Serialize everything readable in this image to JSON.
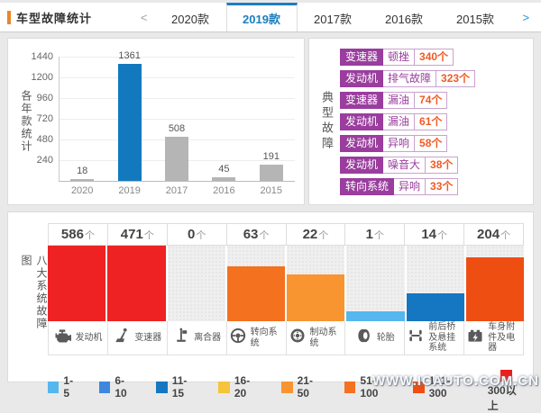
{
  "page": {
    "watermark": "WWW.ICAUTO.COM.CN"
  },
  "header": {
    "title": "车型故障统计",
    "prev_arrow": "<",
    "next_arrow": ">",
    "tabs": [
      {
        "label": "2020款",
        "active": false
      },
      {
        "label": "2019款",
        "active": true
      },
      {
        "label": "2017款",
        "active": false
      },
      {
        "label": "2016款",
        "active": false
      },
      {
        "label": "2015款",
        "active": false
      }
    ]
  },
  "colors": {
    "accent_orange": "#e8872b",
    "active_tab_blue": "#1c7ec0",
    "highlight_bar_blue": "#1279bf",
    "gray_bar": "#b5b5b5",
    "purple": "#9a3d9e",
    "purple_border": "#c9a2ce",
    "count_orange": "#f15a24"
  },
  "chart_data": [
    {
      "type": "bar",
      "title": "各年款统计",
      "categories": [
        "2020",
        "2019",
        "2017",
        "2016",
        "2015"
      ],
      "values": [
        18,
        1361,
        508,
        45,
        191
      ],
      "highlight_index": 1,
      "yticks": [
        1440,
        1200,
        960,
        720,
        480,
        240
      ],
      "ylim": [
        0,
        1440
      ],
      "grid": true,
      "bar_color_default": "#b5b5b5",
      "bar_color_highlight": "#1279bf"
    },
    {
      "type": "bar",
      "title": "八大系统故障图",
      "categories": [
        "发动机",
        "变速器",
        "离合器",
        "转向系统",
        "制动系统",
        "轮胎",
        "前后桥及悬挂系统",
        "车身附件及电器"
      ],
      "icons": [
        "engine-icon",
        "gearshift-icon",
        "clutch-icon",
        "steering-wheel-icon",
        "brake-disc-icon",
        "tire-icon",
        "axle-suspension-icon",
        "battery-icon"
      ],
      "values": [
        586,
        471,
        0,
        63,
        22,
        1,
        14,
        204
      ],
      "unit": "个",
      "bar_colors": [
        "#ee2222",
        "#ee2222",
        "",
        "#f4711f",
        "#f89531",
        "#55b7ee",
        "#1577c2",
        "#ef4e12"
      ],
      "bar_height_pct": [
        100,
        100,
        0,
        73,
        62,
        13,
        37,
        85
      ],
      "legend_position": "bottom",
      "legend": [
        {
          "label": "1-5",
          "color": "#55b7ee"
        },
        {
          "label": "6-10",
          "color": "#3e87dd"
        },
        {
          "label": "11-15",
          "color": "#1577c2"
        },
        {
          "label": "16-20",
          "color": "#f6c33a"
        },
        {
          "label": "21-50",
          "color": "#f89531"
        },
        {
          "label": "51-100",
          "color": "#f4711f"
        },
        {
          "label": "101-300",
          "color": "#ef4e12"
        },
        {
          "label": "300以上",
          "color": "#ee1c1c"
        }
      ]
    }
  ],
  "typical_faults": {
    "title": "典型故障",
    "items": [
      {
        "system": "变速器",
        "fault": "顿挫",
        "count": "340个"
      },
      {
        "system": "发动机",
        "fault": "排气故障",
        "count": "323个"
      },
      {
        "system": "变速器",
        "fault": "漏油",
        "count": "74个"
      },
      {
        "system": "发动机",
        "fault": "漏油",
        "count": "61个"
      },
      {
        "system": "发动机",
        "fault": "异响",
        "count": "58个"
      },
      {
        "system": "发动机",
        "fault": "噪音大",
        "count": "38个"
      },
      {
        "system": "转向系统",
        "fault": "异响",
        "count": "33个"
      }
    ]
  }
}
